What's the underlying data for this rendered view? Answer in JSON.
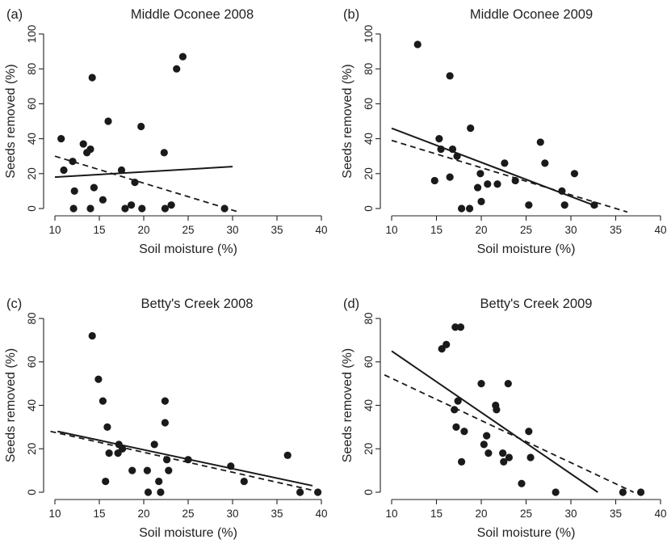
{
  "chart_data": [
    {
      "type": "scatter",
      "panel": "(a)",
      "title": "Middle Oconee 2008",
      "xlabel": "Soil moisture (%)",
      "ylabel": "Seeds removed (%)",
      "xlim": [
        10,
        40
      ],
      "ylim": [
        0,
        100
      ],
      "xticks": [
        10,
        15,
        20,
        25,
        30,
        35,
        40
      ],
      "yticks": [
        0,
        20,
        40,
        60,
        80,
        100
      ],
      "points": [
        [
          10.7,
          40
        ],
        [
          11,
          22
        ],
        [
          12,
          27
        ],
        [
          12.2,
          10
        ],
        [
          12.1,
          0
        ],
        [
          13.2,
          37
        ],
        [
          13.6,
          32
        ],
        [
          14,
          34
        ],
        [
          14.2,
          75
        ],
        [
          14,
          0
        ],
        [
          14.4,
          12
        ],
        [
          15.4,
          5
        ],
        [
          16,
          50
        ],
        [
          17.5,
          22
        ],
        [
          17.9,
          0
        ],
        [
          18.6,
          2
        ],
        [
          19,
          15
        ],
        [
          19.7,
          47
        ],
        [
          19.8,
          0
        ],
        [
          22.3,
          32
        ],
        [
          22.4,
          0
        ],
        [
          23.1,
          2
        ],
        [
          23.7,
          80
        ],
        [
          24.4,
          87
        ],
        [
          29.1,
          0
        ]
      ],
      "solid_fit": [
        [
          10,
          18
        ],
        [
          30,
          24
        ]
      ],
      "dashed_fit": [
        [
          10,
          30
        ],
        [
          30.7,
          -2
        ]
      ]
    },
    {
      "type": "scatter",
      "panel": "(b)",
      "title": "Middle Oconee 2009",
      "xlabel": "Soil moisture (%)",
      "ylabel": "Seeds removed (%)",
      "xlim": [
        10,
        40
      ],
      "ylim": [
        0,
        100
      ],
      "xticks": [
        10,
        15,
        20,
        25,
        30,
        35,
        40
      ],
      "yticks": [
        0,
        20,
        40,
        60,
        80,
        100
      ],
      "points": [
        [
          12.9,
          94
        ],
        [
          14.8,
          16
        ],
        [
          15.3,
          40
        ],
        [
          15.5,
          34
        ],
        [
          16.5,
          76
        ],
        [
          16.5,
          18
        ],
        [
          16.8,
          34
        ],
        [
          17.3,
          30
        ],
        [
          17.8,
          0
        ],
        [
          18.7,
          0
        ],
        [
          18.8,
          46
        ],
        [
          19.6,
          12
        ],
        [
          19.9,
          20
        ],
        [
          20,
          4
        ],
        [
          20.7,
          14
        ],
        [
          21.8,
          14
        ],
        [
          22.6,
          26
        ],
        [
          23.8,
          16
        ],
        [
          25.3,
          2
        ],
        [
          26.6,
          38
        ],
        [
          27.1,
          26
        ],
        [
          29,
          10
        ],
        [
          29.3,
          2
        ],
        [
          30.4,
          20
        ],
        [
          32.6,
          2
        ]
      ],
      "solid_fit": [
        [
          10,
          46
        ],
        [
          33,
          1
        ]
      ],
      "dashed_fit": [
        [
          10,
          39
        ],
        [
          36.3,
          -2
        ]
      ]
    },
    {
      "type": "scatter",
      "panel": "(c)",
      "title": "Betty's Creek 2008",
      "xlabel": "Soil moisture (%)",
      "ylabel": "Seeds removed (%)",
      "xlim": [
        10,
        40
      ],
      "ylim": [
        0,
        80
      ],
      "xticks": [
        10,
        15,
        20,
        25,
        30,
        35,
        40
      ],
      "yticks": [
        0,
        20,
        40,
        60,
        80
      ],
      "points": [
        [
          14.2,
          72
        ],
        [
          14.9,
          52
        ],
        [
          15.4,
          42
        ],
        [
          15.7,
          5
        ],
        [
          15.9,
          30
        ],
        [
          16.1,
          18
        ],
        [
          17.1,
          18
        ],
        [
          17.2,
          22
        ],
        [
          17.6,
          20
        ],
        [
          18.7,
          10
        ],
        [
          20.4,
          10
        ],
        [
          20.5,
          0
        ],
        [
          21.2,
          22
        ],
        [
          21.7,
          5
        ],
        [
          21.9,
          0
        ],
        [
          22.4,
          42
        ],
        [
          22.4,
          32
        ],
        [
          22.6,
          15
        ],
        [
          22.8,
          10
        ],
        [
          25,
          15
        ],
        [
          29.8,
          12
        ],
        [
          31.3,
          5
        ],
        [
          36.2,
          17
        ],
        [
          37.6,
          0
        ],
        [
          39.6,
          0
        ]
      ],
      "solid_fit": [
        [
          10.3,
          28
        ],
        [
          39,
          3
        ]
      ],
      "dashed_fit": [
        [
          9.5,
          28
        ],
        [
          40,
          0
        ]
      ]
    },
    {
      "type": "scatter",
      "panel": "(d)",
      "title": "Betty's Creek 2009",
      "xlabel": "Soil moisture (%)",
      "ylabel": "Seeds removed (%)",
      "xlim": [
        10,
        40
      ],
      "ylim": [
        0,
        80
      ],
      "xticks": [
        10,
        15,
        20,
        25,
        30,
        35,
        40
      ],
      "yticks": [
        0,
        20,
        40,
        60,
        80
      ],
      "points": [
        [
          15.6,
          66
        ],
        [
          16.1,
          68
        ],
        [
          17,
          38
        ],
        [
          17.1,
          76
        ],
        [
          17.2,
          30
        ],
        [
          17.4,
          42
        ],
        [
          17.7,
          76
        ],
        [
          17.8,
          14
        ],
        [
          18.1,
          28
        ],
        [
          20,
          50
        ],
        [
          20.3,
          22
        ],
        [
          20.6,
          26
        ],
        [
          20.8,
          18
        ],
        [
          21.6,
          40
        ],
        [
          21.7,
          38
        ],
        [
          22.4,
          18
        ],
        [
          22.5,
          14
        ],
        [
          23,
          50
        ],
        [
          23.1,
          16
        ],
        [
          24.5,
          4
        ],
        [
          25.3,
          28
        ],
        [
          25.5,
          16
        ],
        [
          28.3,
          0
        ],
        [
          35.8,
          0
        ],
        [
          37.8,
          0
        ]
      ],
      "solid_fit": [
        [
          10,
          65
        ],
        [
          33,
          0
        ]
      ],
      "dashed_fit": [
        [
          9.2,
          54
        ],
        [
          37,
          0
        ]
      ]
    }
  ]
}
